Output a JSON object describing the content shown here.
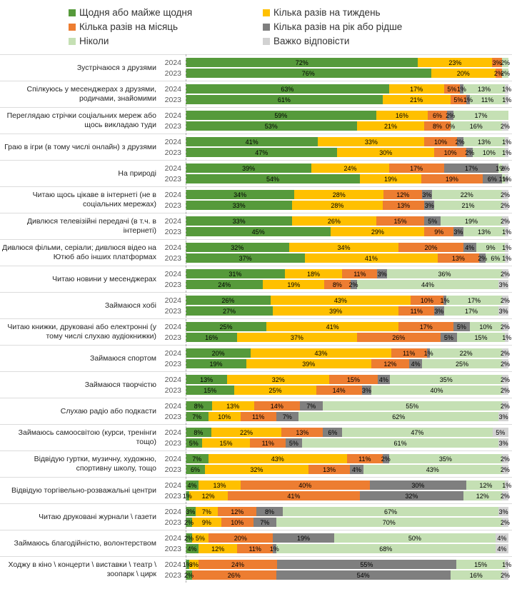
{
  "chart_data": {
    "type": "bar",
    "orientation": "horizontal",
    "stacked": true,
    "unit": "%",
    "x_range": [
      0,
      100
    ],
    "grid": false,
    "legend_position": "top",
    "series_names": [
      "Щодня або майже щодня",
      "Кілька разів на тиждень",
      "Кілька разів на місяць",
      "Кілька разів на рік або рідше",
      "Ніколи",
      "Важко відповісти"
    ],
    "series_colors": [
      "#569A3B",
      "#FFC000",
      "#ED7D31",
      "#7F7F7F",
      "#C5E0B4",
      "#D2D2D2"
    ],
    "year_rows": [
      "2024",
      "2023"
    ],
    "groups": [
      {
        "label": "Зустрічаюся з друзями",
        "rows": [
          {
            "year": "2024",
            "values": [
              72,
              23,
              3,
              0,
              2,
              0
            ]
          },
          {
            "year": "2023",
            "values": [
              76,
              20,
              2,
              0,
              2,
              0
            ]
          }
        ]
      },
      {
        "label": "Спілкуюсь у месенджерах з друзями, родичами, знайомими",
        "rows": [
          {
            "year": "2024",
            "values": [
              63,
              17,
              5,
              1,
              13,
              1
            ]
          },
          {
            "year": "2023",
            "values": [
              61,
              21,
              5,
              1,
              11,
              1
            ]
          }
        ]
      },
      {
        "label": "Переглядаю стрічки соціальних мереж або щось викладаю туди",
        "rows": [
          {
            "year": "2024",
            "values": [
              59,
              16,
              6,
              2,
              17,
              0
            ]
          },
          {
            "year": "2023",
            "values": [
              53,
              21,
              8,
              0,
              16,
              2
            ],
            "zero_labels": [
              3
            ]
          }
        ]
      },
      {
        "label": "Граю в ігри (в тому числі онлайн) з друзями",
        "rows": [
          {
            "year": "2024",
            "values": [
              41,
              33,
              10,
              2,
              13,
              1
            ]
          },
          {
            "year": "2023",
            "values": [
              47,
              30,
              10,
              2,
              10,
              1
            ]
          }
        ]
      },
      {
        "label": "На природі",
        "rows": [
          {
            "year": "2024",
            "values": [
              39,
              24,
              17,
              17,
              1,
              2
            ]
          },
          {
            "year": "2023",
            "values": [
              54,
              19,
              19,
              6,
              1,
              1
            ]
          }
        ]
      },
      {
        "label": "Читаю щось цікаве в інтернеті (не в соціальних мережах)",
        "rows": [
          {
            "year": "2024",
            "values": [
              34,
              28,
              12,
              3,
              22,
              2
            ]
          },
          {
            "year": "2023",
            "values": [
              33,
              28,
              13,
              3,
              21,
              2
            ]
          }
        ]
      },
      {
        "label": "Дивлюся телевізійні передачі (в т.ч. в інтернеті)",
        "rows": [
          {
            "year": "2024",
            "values": [
              33,
              26,
              15,
              5,
              19,
              2
            ]
          },
          {
            "year": "2023",
            "values": [
              45,
              29,
              9,
              3,
              13,
              1
            ]
          }
        ]
      },
      {
        "label": "Дивлюся фільми, серіали; дивлюся відео на Ютюб або інших платформах",
        "rows": [
          {
            "year": "2024",
            "values": [
              32,
              34,
              20,
              4,
              9,
              1
            ]
          },
          {
            "year": "2023",
            "values": [
              37,
              41,
              13,
              2,
              6,
              1
            ]
          }
        ]
      },
      {
        "label": "Читаю новини у месенджерах",
        "rows": [
          {
            "year": "2024",
            "values": [
              31,
              18,
              11,
              3,
              36,
              2
            ]
          },
          {
            "year": "2023",
            "values": [
              24,
              19,
              8,
              2,
              44,
              3
            ]
          }
        ]
      },
      {
        "label": "Займаюся хобі",
        "rows": [
          {
            "year": "2024",
            "values": [
              26,
              43,
              10,
              1,
              17,
              2
            ]
          },
          {
            "year": "2023",
            "values": [
              27,
              39,
              11,
              3,
              17,
              3
            ]
          }
        ]
      },
      {
        "label": "Читаю книжки, друковані або електронні (у тому числі слухаю аудіокнижки)",
        "rows": [
          {
            "year": "2024",
            "values": [
              25,
              41,
              17,
              5,
              10,
              2
            ]
          },
          {
            "year": "2023",
            "values": [
              16,
              37,
              26,
              5,
              15,
              1
            ]
          }
        ]
      },
      {
        "label": "Займаюся спортом",
        "rows": [
          {
            "year": "2024",
            "values": [
              20,
              43,
              11,
              1,
              22,
              2
            ]
          },
          {
            "year": "2023",
            "values": [
              19,
              39,
              12,
              4,
              25,
              2
            ]
          }
        ]
      },
      {
        "label": "Займаюся творчістю",
        "rows": [
          {
            "year": "2024",
            "values": [
              13,
              32,
              15,
              4,
              35,
              2
            ]
          },
          {
            "year": "2023",
            "values": [
              15,
              25,
              14,
              3,
              40,
              2
            ]
          }
        ]
      },
      {
        "label": "Слухаю радіо або подкасти",
        "rows": [
          {
            "year": "2024",
            "values": [
              8,
              13,
              14,
              7,
              55,
              2
            ]
          },
          {
            "year": "2023",
            "values": [
              7,
              10,
              11,
              7,
              62,
              3
            ]
          }
        ]
      },
      {
        "label": "Займаюсь самоосвітою (курси, тренінги тощо)",
        "rows": [
          {
            "year": "2024",
            "values": [
              8,
              22,
              13,
              6,
              47,
              5
            ]
          },
          {
            "year": "2023",
            "values": [
              5,
              15,
              11,
              5,
              61,
              3
            ]
          }
        ]
      },
      {
        "label": "Відвідую гуртки, музичну, художню, спортивну школу, тощо",
        "rows": [
          {
            "year": "2024",
            "values": [
              7,
              43,
              11,
              2,
              35,
              2
            ]
          },
          {
            "year": "2023",
            "values": [
              6,
              32,
              13,
              4,
              43,
              2
            ]
          }
        ]
      },
      {
        "label": "Відвідую торгівельно-розважальні центри",
        "rows": [
          {
            "year": "2024",
            "values": [
              4,
              13,
              40,
              30,
              12,
              1
            ]
          },
          {
            "year": "2023",
            "values": [
              1,
              12,
              41,
              32,
              12,
              2
            ]
          }
        ]
      },
      {
        "label": "Читаю друковані журнали \\ газети",
        "rows": [
          {
            "year": "2024",
            "values": [
              3,
              7,
              12,
              8,
              67,
              3
            ]
          },
          {
            "year": "2023",
            "values": [
              2,
              9,
              10,
              7,
              70,
              2
            ]
          }
        ]
      },
      {
        "label": "Займаюсь благодійністю, волонтерством",
        "rows": [
          {
            "year": "2024",
            "values": [
              2,
              5,
              20,
              19,
              50,
              4
            ]
          },
          {
            "year": "2023",
            "values": [
              4,
              12,
              11,
              1,
              68,
              4
            ]
          }
        ]
      },
      {
        "label": "Ходжу в кіно \\ концерти \\ виставки \\ театр \\ зоопарк \\ цирк",
        "rows": [
          {
            "year": "2024",
            "values": [
              1,
              3,
              24,
              55,
              15,
              1
            ]
          },
          {
            "year": "2023",
            "values": [
              2,
              0,
              26,
              54,
              16,
              2
            ]
          }
        ]
      }
    ]
  }
}
